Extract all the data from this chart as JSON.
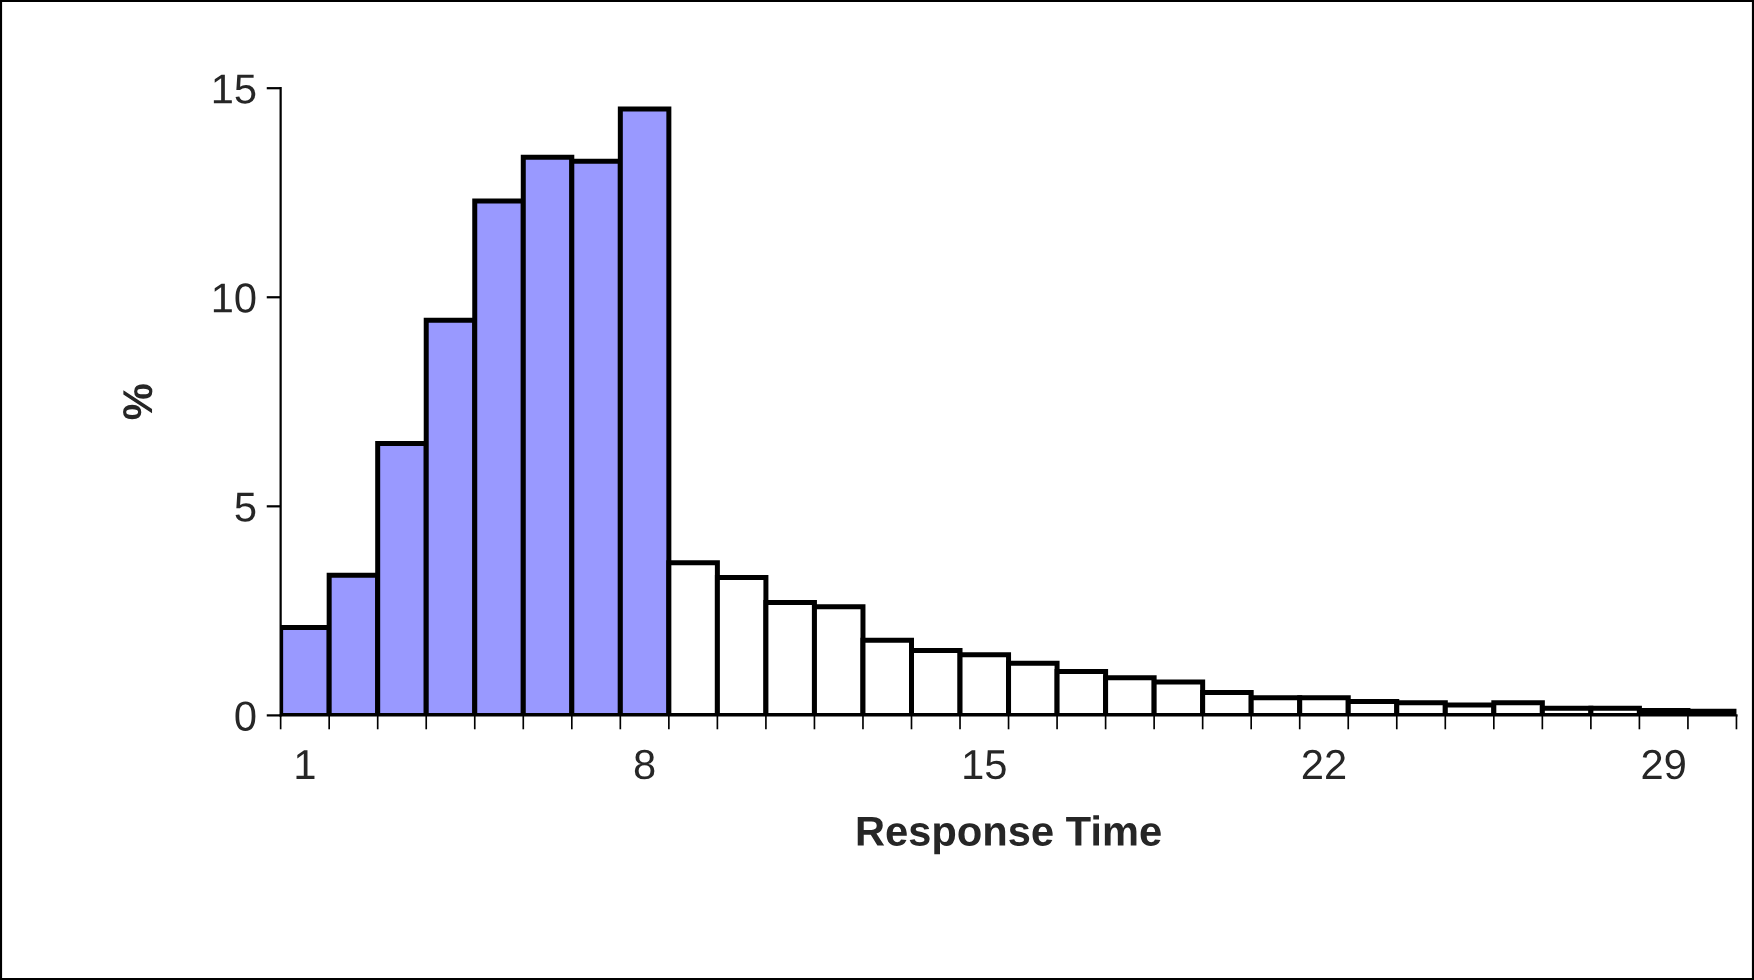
{
  "chart_data": {
    "type": "bar",
    "xlabel": "Response Time",
    "ylabel": "%",
    "categories": [
      "1",
      null,
      null,
      null,
      null,
      null,
      null,
      "8",
      null,
      null,
      null,
      null,
      null,
      null,
      "15",
      null,
      null,
      null,
      null,
      null,
      null,
      "22",
      null,
      null,
      null,
      null,
      null,
      null,
      "29",
      null
    ],
    "values": [
      2.1,
      3.35,
      6.5,
      9.45,
      12.3,
      13.35,
      13.25,
      14.5,
      3.65,
      3.3,
      2.7,
      2.6,
      1.8,
      1.55,
      1.45,
      1.25,
      1.05,
      0.9,
      0.8,
      0.55,
      0.42,
      0.42,
      0.33,
      0.3,
      0.25,
      0.3,
      0.17,
      0.17,
      0.12,
      0.1
    ],
    "colors": [
      "#9999ff",
      "#9999ff",
      "#9999ff",
      "#9999ff",
      "#9999ff",
      "#9999ff",
      "#9999ff",
      "#9999ff",
      "#ffffff",
      "#ffffff",
      "#ffffff",
      "#ffffff",
      "#ffffff",
      "#ffffff",
      "#ffffff",
      "#ffffff",
      "#ffffff",
      "#ffffff",
      "#ffffff",
      "#ffffff",
      "#ffffff",
      "#ffffff",
      "#ffffff",
      "#ffffff",
      "#ffffff",
      "#ffffff",
      "#ffffff",
      "#ffffff",
      "#ffffff",
      "#ffffff"
    ],
    "ylim": [
      0,
      15
    ],
    "yticks": [
      0,
      5,
      10,
      15
    ],
    "grid": false,
    "legend": false
  }
}
